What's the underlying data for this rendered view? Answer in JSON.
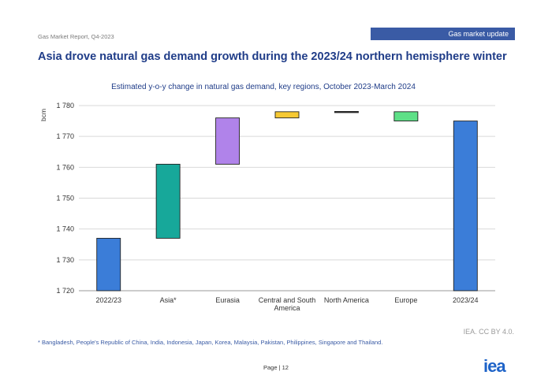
{
  "header": {
    "report_label": "Gas Market Report, Q4-2023",
    "section_label": "Gas market update",
    "slide_title": "Asia drove natural gas demand growth during the 2023/24 northern hemisphere winter"
  },
  "chart_data": {
    "type": "bar",
    "subtype": "waterfall",
    "title": "Estimated y-o-y change in natural gas demand, key regions, October 2023-March 2024",
    "ylabel": "bcm",
    "xlabel": "",
    "ylim": [
      1720,
      1780
    ],
    "yticks": [
      1720,
      1730,
      1740,
      1750,
      1760,
      1770,
      1780
    ],
    "ytick_labels": [
      "1 720",
      "1 730",
      "1 740",
      "1 750",
      "1 760",
      "1 770",
      "1 780"
    ],
    "grid": true,
    "categories": [
      "2022/23",
      "Asia*",
      "Eurasia",
      "Central and South America",
      "North America",
      "Europe",
      "2023/24"
    ],
    "bars": [
      {
        "label": "2022/23",
        "low": 1720,
        "high": 1737,
        "color": "#3b7dd8"
      },
      {
        "label": "Asia*",
        "low": 1737,
        "high": 1761,
        "color": "#17a89a"
      },
      {
        "label": "Eurasia",
        "low": 1761,
        "high": 1776,
        "color": "#b083ea"
      },
      {
        "label": "Central and South America",
        "low": 1776,
        "high": 1778,
        "color": "#f6c933"
      },
      {
        "label": "North America",
        "low": 1778,
        "high": 1778.1,
        "color": "#333333"
      },
      {
        "label": "Europe",
        "low": 1775,
        "high": 1778,
        "color": "#5ee087"
      },
      {
        "label": "2023/24",
        "low": 1720,
        "high": 1775,
        "color": "#3b7dd8"
      }
    ]
  },
  "footer": {
    "credit": "IEA. CC BY 4.0.",
    "footnote": "* Bangladesh, People's Republic of China, India, Indonesia, Japan, Korea, Malaysia, Pakistan, Philippines, Singapore and Thailand.",
    "page_number": "Page | 12",
    "logo_text": "iea"
  }
}
